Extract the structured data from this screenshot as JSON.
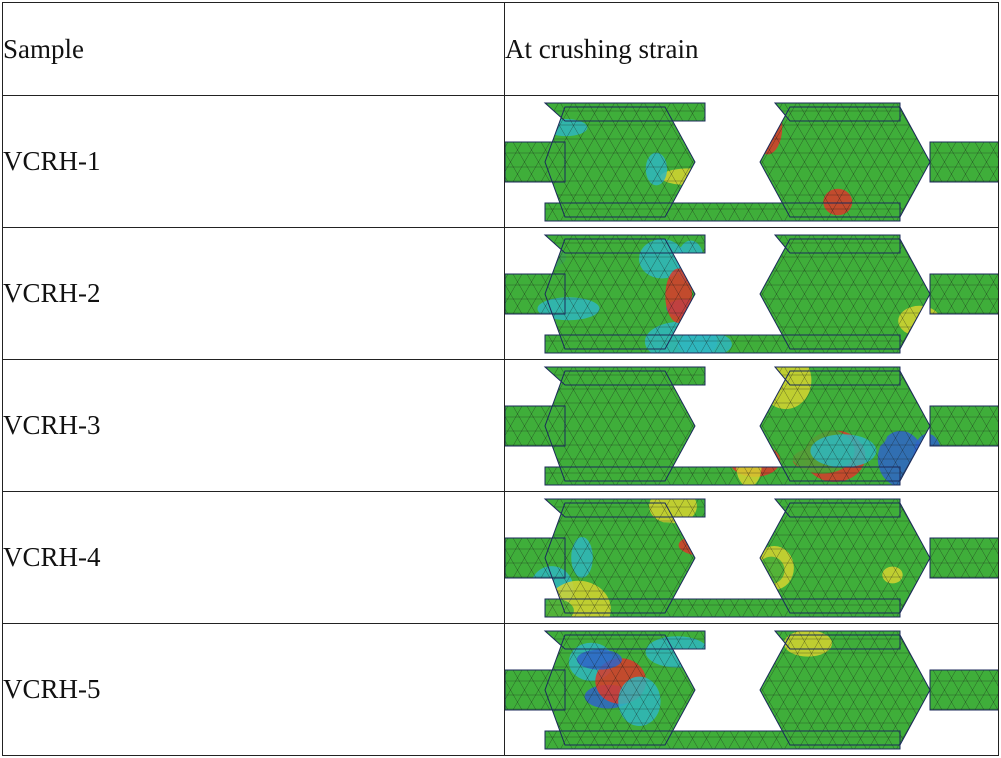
{
  "table": {
    "headers": {
      "sample": "Sample",
      "strain": "At crushing strain"
    },
    "rows": [
      {
        "sample": "VCRH-1",
        "image_icon": "fem-contour-icon"
      },
      {
        "sample": "VCRH-2",
        "image_icon": "fem-contour-icon"
      },
      {
        "sample": "VCRH-3",
        "image_icon": "fem-contour-icon"
      },
      {
        "sample": "VCRH-4",
        "image_icon": "fem-contour-icon"
      },
      {
        "sample": "VCRH-5",
        "image_icon": "fem-contour-icon"
      }
    ]
  },
  "colors": {
    "border": "#222222",
    "contour_green": "#3fae3a",
    "contour_blue": "#2f64c8",
    "contour_cyan": "#2fb6c0",
    "contour_yellow": "#d6d330",
    "contour_red": "#d93a2b"
  }
}
